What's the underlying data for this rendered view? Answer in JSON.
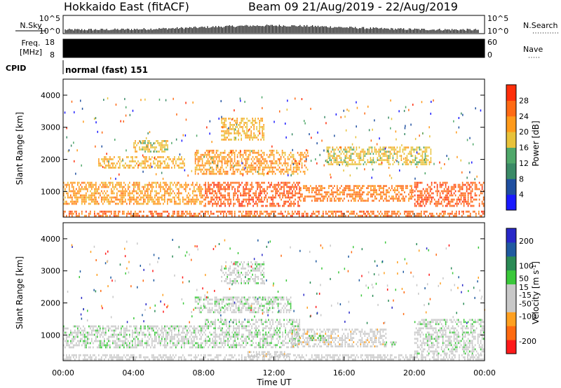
{
  "header": {
    "title_left": "Hokkaido East (fitACF)",
    "title_right": "Beam 09  21/Aug/2019 - 22/Aug/2019"
  },
  "summary": {
    "nsky_label": "N.Sky",
    "nsky_ticks": [
      "10^5",
      "10^0"
    ],
    "nsearch_label": "N.Search",
    "nsearch_ticks": [
      "10^5",
      "10^0"
    ],
    "freq_label_1": "Freq.",
    "freq_label_2": "[MHz]",
    "freq_ticks": [
      "18",
      "8"
    ],
    "nave_label": "Nave",
    "nave_ticks": [
      "60",
      "0"
    ],
    "cpid_label": "CPID",
    "cpid_text": "normal (fast) 151"
  },
  "x_axis": {
    "label": "Time UT",
    "ticks": [
      "00:00",
      "04:00",
      "08:00",
      "12:00",
      "16:00",
      "20:00",
      "00:00"
    ]
  },
  "colors": {
    "power_scale": [
      "#1a1aff",
      "#1f4fa0",
      "#3a8a66",
      "#4fa86a",
      "#e8c23a",
      "#ff9a1a",
      "#ff6a14",
      "#ff2e0a"
    ],
    "velocity_scale": [
      "#ff1a1a",
      "#ff6a10",
      "#ffa020",
      "#c8c8c8",
      "#c8c8c8",
      "#3ac83a",
      "#2a8a55",
      "#1f5aa0",
      "#2828c8"
    ],
    "ground_scatter": "#b0b0b0"
  },
  "chart_data": [
    {
      "type": "heatmap",
      "panel": "power",
      "xlabel": "",
      "ylabel": "Slant Range [km]",
      "xlim_hours": [
        0,
        24
      ],
      "ylim_km": [
        200,
        4500
      ],
      "y_ticks": [
        1000,
        2000,
        3000,
        4000
      ],
      "colorbar": {
        "label": "Power [dB]",
        "ticks": [
          4,
          8,
          12,
          16,
          20,
          24,
          28
        ],
        "range": [
          0,
          32
        ]
      },
      "regions": [
        {
          "t0": 0.0,
          "t1": 24.0,
          "r0": 200,
          "r1": 400,
          "level": 26
        },
        {
          "t0": 0.0,
          "t1": 8.0,
          "r0": 600,
          "r1": 1300,
          "level": 22
        },
        {
          "t0": 8.0,
          "t1": 13.5,
          "r0": 500,
          "r1": 1300,
          "level": 27
        },
        {
          "t0": 13.5,
          "t1": 20.0,
          "r0": 700,
          "r1": 1200,
          "level": 25
        },
        {
          "t0": 20.0,
          "t1": 24.0,
          "r0": 500,
          "r1": 1300,
          "level": 27
        },
        {
          "t0": 2.0,
          "t1": 7.0,
          "r0": 1700,
          "r1": 2100,
          "level": 20
        },
        {
          "t0": 7.5,
          "t1": 14.0,
          "r0": 1500,
          "r1": 2300,
          "level": 22
        },
        {
          "t0": 15.0,
          "t1": 21.0,
          "r0": 1800,
          "r1": 2400,
          "level": 18
        },
        {
          "t0": 9.0,
          "t1": 11.5,
          "r0": 2600,
          "r1": 3300,
          "level": 20
        },
        {
          "t0": 4.0,
          "t1": 6.0,
          "r0": 2200,
          "r1": 2600,
          "level": 18
        }
      ]
    },
    {
      "type": "heatmap",
      "panel": "velocity",
      "xlabel": "Time UT",
      "ylabel": "Slant Range [km]",
      "xlim_hours": [
        0,
        24
      ],
      "ylim_km": [
        200,
        4500
      ],
      "y_ticks": [
        1000,
        2000,
        3000,
        4000
      ],
      "colorbar": {
        "label": "Velocity [m s^-1]",
        "ticks": [
          -200,
          -100,
          -50,
          -15,
          15,
          50,
          100,
          200
        ],
        "range": [
          -250,
          250
        ]
      },
      "regions": [
        {
          "t0": 0.0,
          "t1": 8.0,
          "r0": 600,
          "r1": 1300,
          "level": 0
        },
        {
          "t0": 8.0,
          "t1": 13.5,
          "r0": 600,
          "r1": 1500,
          "level": 0
        },
        {
          "t0": 20.0,
          "t1": 24.0,
          "r0": 400,
          "r1": 1500,
          "level": 0
        },
        {
          "t0": 13.0,
          "t1": 18.5,
          "r0": 600,
          "r1": 1200,
          "level": -45
        },
        {
          "t0": 10.5,
          "t1": 13.0,
          "r0": 300,
          "r1": 500,
          "level": -45
        },
        {
          "t0": 14.0,
          "t1": 15.0,
          "r0": 800,
          "r1": 1000,
          "level": 30
        },
        {
          "t0": 18.3,
          "t1": 19.0,
          "r0": 600,
          "r1": 800,
          "level": 30
        },
        {
          "t0": 9.0,
          "t1": 11.5,
          "r0": 2600,
          "r1": 3300,
          "level": 0
        },
        {
          "t0": 7.5,
          "t1": 13.0,
          "r0": 1700,
          "r1": 2200,
          "level": 0
        },
        {
          "t0": 0.0,
          "t1": 24.0,
          "r0": 200,
          "r1": 400,
          "level": -20
        }
      ]
    }
  ]
}
